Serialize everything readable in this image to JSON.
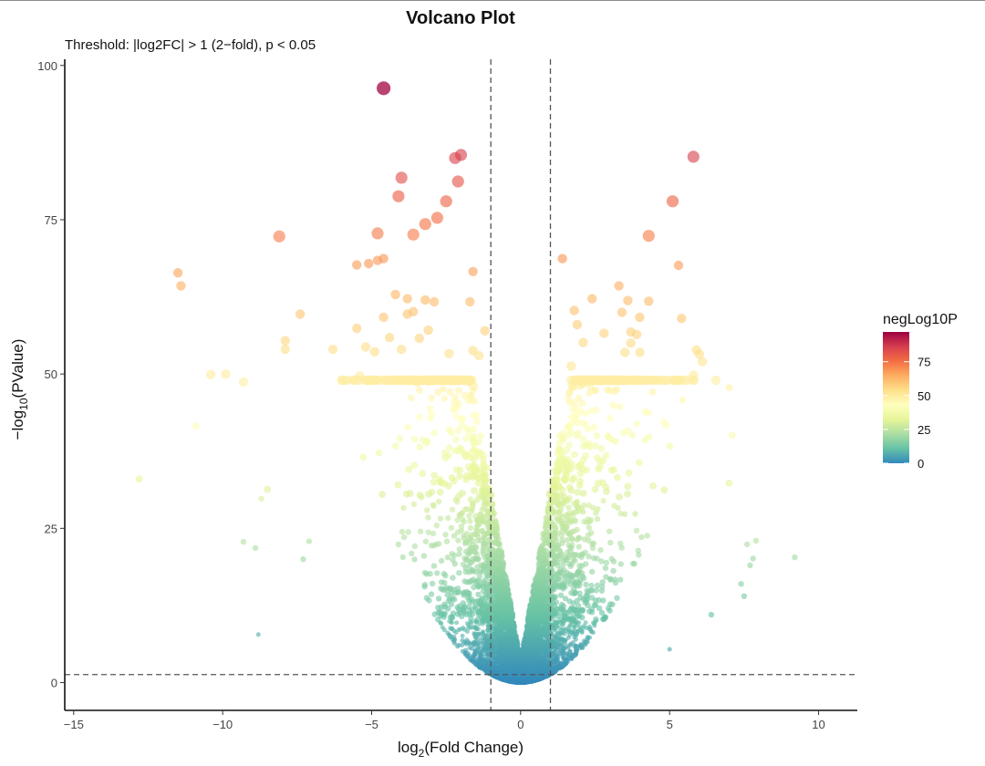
{
  "chart_data": {
    "type": "scatter",
    "title": "Volcano Plot",
    "subtitle": "Threshold: |log2FC| > 1 (2−fold), p < 0.05",
    "xlabel_parts": [
      "log",
      "2",
      "(Fold Change)"
    ],
    "ylabel_parts": [
      "−log",
      "10",
      "(PValue)"
    ],
    "xlim": [
      -15.3,
      11.3
    ],
    "ylim": [
      -4.5,
      101
    ],
    "x_ticks": [
      -15,
      -10,
      -5,
      0,
      5,
      10
    ],
    "x_tick_labels": [
      "−15",
      "−10",
      "−5",
      "0",
      "5",
      "10"
    ],
    "y_ticks": [
      0,
      25,
      50,
      75,
      100
    ],
    "y_tick_labels": [
      "0",
      "25",
      "50",
      "75",
      "100"
    ],
    "thresholds": {
      "log2fc": [
        -1,
        1
      ],
      "neglog10p": 1.301
    },
    "grid": false,
    "legend": {
      "title": "negLog10P",
      "position": "right",
      "ticks": [
        0,
        25,
        50,
        75
      ],
      "tick_labels": [
        "0",
        "25",
        "50",
        "75"
      ],
      "range": [
        0,
        97
      ],
      "colors": [
        "#3288bd",
        "#66c2a5",
        "#abdda4",
        "#e6f598",
        "#ffffbf",
        "#fee08b",
        "#fdae61",
        "#f46d43",
        "#d53e4f",
        "#9e0142"
      ]
    },
    "series": [
      {
        "highlighted_points": [
          [
            -4.6,
            96.3
          ],
          [
            -2.0,
            85.5
          ],
          [
            -2.2,
            85.0
          ],
          [
            -4.0,
            81.8
          ],
          [
            -2.1,
            81.2
          ],
          [
            -4.1,
            78.8
          ],
          [
            -2.5,
            78.0
          ],
          [
            -2.8,
            75.3
          ],
          [
            -3.2,
            74.3
          ],
          [
            -3.6,
            72.6
          ],
          [
            -4.8,
            72.8
          ],
          [
            -8.1,
            72.3
          ],
          [
            -4.6,
            68.7
          ],
          [
            -4.8,
            68.4
          ],
          [
            -5.1,
            67.9
          ],
          [
            -5.5,
            67.7
          ],
          [
            -1.6,
            66.6
          ],
          [
            -11.5,
            66.4
          ],
          [
            -11.4,
            64.3
          ],
          [
            -4.2,
            62.9
          ],
          [
            -3.8,
            62.2
          ],
          [
            -3.2,
            62.0
          ],
          [
            -2.9,
            61.7
          ],
          [
            -1.7,
            61.7
          ],
          [
            -3.6,
            60.1
          ],
          [
            -7.4,
            59.7
          ],
          [
            -3.8,
            59.7
          ],
          [
            -4.6,
            59.2
          ],
          [
            -5.5,
            57.4
          ],
          [
            -3.1,
            57.1
          ],
          [
            -1.2,
            57.0
          ],
          [
            -7.9,
            55.4
          ],
          [
            -4.4,
            55.9
          ],
          [
            -3.4,
            55.8
          ],
          [
            -5.2,
            54.4
          ],
          [
            -7.9,
            54.0
          ],
          [
            -6.3,
            54.0
          ],
          [
            -4.0,
            54.0
          ],
          [
            -1.6,
            53.8
          ],
          [
            -4.9,
            53.6
          ],
          [
            -2.4,
            53.3
          ],
          [
            -1.4,
            53.0
          ],
          [
            -5.4,
            49.7
          ],
          [
            -6.0,
            49.0
          ],
          [
            -10.4,
            49.9
          ],
          [
            -9.9,
            50.0
          ],
          [
            -9.3,
            48.7
          ],
          [
            -10.9,
            41.6
          ],
          [
            -12.8,
            33.0
          ],
          [
            -8.5,
            31.3
          ],
          [
            -8.7,
            29.8
          ],
          [
            -9.3,
            22.8
          ],
          [
            -8.9,
            21.8
          ],
          [
            -7.1,
            22.9
          ],
          [
            -7.3,
            20.0
          ],
          [
            -8.8,
            7.8
          ],
          [
            1.4,
            68.7
          ],
          [
            5.8,
            85.2
          ],
          [
            5.1,
            78.0
          ],
          [
            4.3,
            72.4
          ],
          [
            5.3,
            67.6
          ],
          [
            3.3,
            64.3
          ],
          [
            2.4,
            62.2
          ],
          [
            3.6,
            61.9
          ],
          [
            4.3,
            61.8
          ],
          [
            1.8,
            60.3
          ],
          [
            3.4,
            60.0
          ],
          [
            4.0,
            59.2
          ],
          [
            5.4,
            59.0
          ],
          [
            1.9,
            58.0
          ],
          [
            3.7,
            56.8
          ],
          [
            2.8,
            56.6
          ],
          [
            3.9,
            56.4
          ],
          [
            2.1,
            55.1
          ],
          [
            3.7,
            55.0
          ],
          [
            3.5,
            53.5
          ],
          [
            4.0,
            53.5
          ],
          [
            5.9,
            53.9
          ],
          [
            6.0,
            53.2
          ],
          [
            1.7,
            51.3
          ],
          [
            6.1,
            52.0
          ],
          [
            5.8,
            49.8
          ],
          [
            7.0,
            47.8
          ],
          [
            7.0,
            32.3
          ],
          [
            7.1,
            40.1
          ],
          [
            7.9,
            23.0
          ],
          [
            7.6,
            22.4
          ],
          [
            7.8,
            20.1
          ],
          [
            9.2,
            20.3
          ],
          [
            7.7,
            19.0
          ],
          [
            7.4,
            16.0
          ],
          [
            7.5,
            14.0
          ],
          [
            6.4,
            11.0
          ],
          [
            5.0,
            5.4
          ]
        ]
      }
    ]
  }
}
